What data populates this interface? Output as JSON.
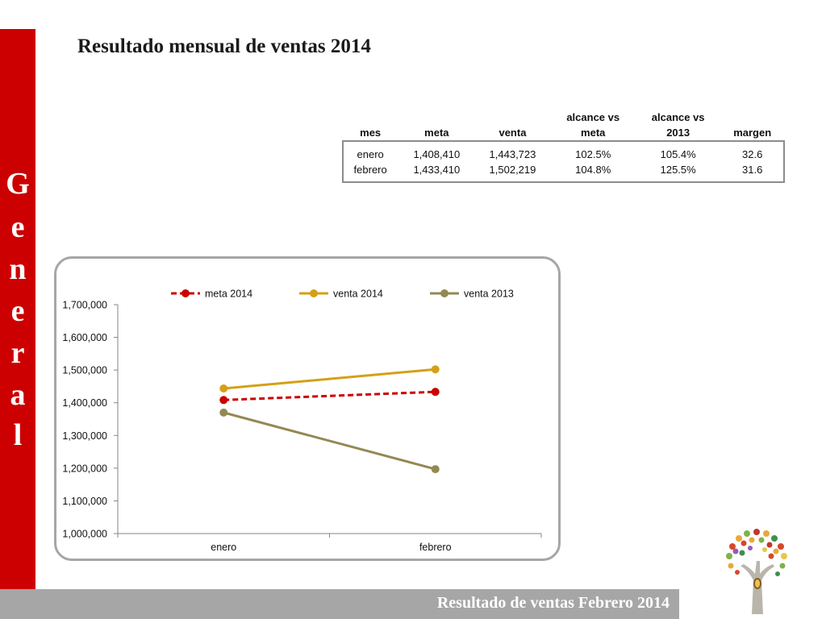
{
  "sidebar": {
    "letters": [
      "G",
      "e",
      "n",
      "e",
      "r",
      "a",
      "l"
    ]
  },
  "title": "Resultado mensual de ventas 2014",
  "table": {
    "headers": [
      {
        "l1": "",
        "l2": "mes"
      },
      {
        "l1": "",
        "l2": "meta"
      },
      {
        "l1": "",
        "l2": "venta"
      },
      {
        "l1": "alcance vs",
        "l2": "meta"
      },
      {
        "l1": "alcance vs",
        "l2": "2013"
      },
      {
        "l1": "",
        "l2": "margen"
      }
    ],
    "rows": [
      [
        "enero",
        "1,408,410",
        "1,443,723",
        "102.5%",
        "105.4%",
        "32.6"
      ],
      [
        "febrero",
        "1,433,410",
        "1,502,219",
        "104.8%",
        "125.5%",
        "31.6"
      ]
    ]
  },
  "chart_data": {
    "type": "line",
    "title": "",
    "xlabel": "",
    "ylabel": "",
    "categories": [
      "enero",
      "febrero"
    ],
    "ylim": [
      1000000,
      1700000
    ],
    "yticks": [
      1000000,
      1100000,
      1200000,
      1300000,
      1400000,
      1500000,
      1600000,
      1700000
    ],
    "ytick_labels": [
      "1,000,000",
      "1,100,000",
      "1,200,000",
      "1,300,000",
      "1,400,000",
      "1,500,000",
      "1,600,000",
      "1,700,000"
    ],
    "legend_position": "top",
    "grid": false,
    "series": [
      {
        "name": "meta 2014",
        "values": [
          1408410,
          1433410
        ],
        "color": "#cc0000",
        "dashed": true
      },
      {
        "name": "venta 2014",
        "values": [
          1443723,
          1502219
        ],
        "color": "#d4a017",
        "dashed": false
      },
      {
        "name": "venta 2013",
        "values": [
          1370000,
          1197000
        ],
        "color": "#938953",
        "dashed": false
      }
    ]
  },
  "footer": {
    "text": "Resultado de ventas Febrero 2014"
  },
  "colors": {
    "sidebar": "#cc0000",
    "footer": "#a6a6a6",
    "frame": "#a6a6a6"
  }
}
